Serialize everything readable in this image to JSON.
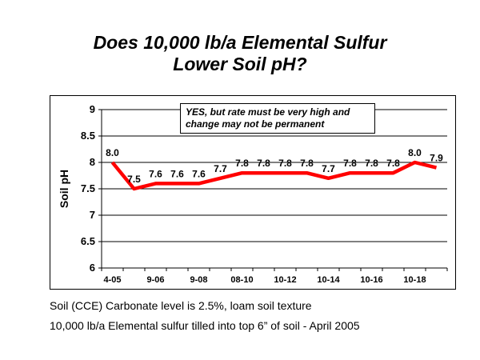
{
  "slide": {
    "title_line1": "Does 10,000 lb/a Elemental Sulfur",
    "title_line2": "Lower Soil pH?",
    "callout_line1": "YES, but rate must be very high and",
    "callout_line2": "change may not be permanent",
    "notes": [
      "Soil (CCE) Carbonate level is 2.5%, loam soil texture",
      "10,000 lb/a Elemental sulfur tilled into top 6” of soil - April 2005"
    ]
  },
  "colors": {
    "line": "#ff0000",
    "grid": "#000000",
    "text": "#000000"
  },
  "chart_data": {
    "type": "line",
    "title": "",
    "xlabel": "",
    "ylabel": "Soil pH",
    "ylim": [
      6,
      9
    ],
    "yticks": [
      "6",
      "6.5",
      "7",
      "7.5",
      "8",
      "8.5",
      "9"
    ],
    "grid": true,
    "x": [
      "4-05",
      "",
      "9-06",
      "",
      "9-08",
      "",
      "08-10",
      "",
      "10-12",
      "",
      "10-14",
      "",
      "10-16",
      "",
      "10-18",
      ""
    ],
    "series": [
      {
        "values": [
          8.0,
          7.5,
          7.6,
          7.6,
          7.6,
          7.7,
          7.8,
          7.8,
          7.8,
          7.8,
          7.7,
          7.8,
          7.8,
          7.8,
          8.0,
          7.9
        ],
        "labels": [
          "8.0",
          "7.5",
          "7.6",
          "7.6",
          "7.6",
          "7.7",
          "7.8",
          "7.8",
          "7.8",
          "7.8",
          "7.7",
          "7.8",
          "7.8",
          "7.8",
          "8.0",
          "7.9"
        ]
      }
    ]
  }
}
